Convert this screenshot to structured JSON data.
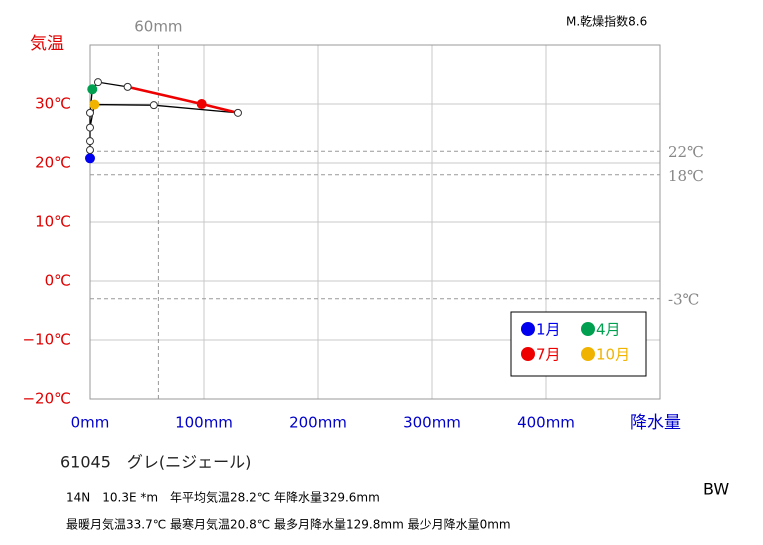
{
  "chart_data": {
    "type": "climograph",
    "aridity": "M.乾燥指数8.6",
    "y_label": "気温",
    "x_label": "降水量",
    "x": [
      0,
      0,
      0,
      2,
      7,
      33,
      98,
      129.8,
      56,
      3.8,
      0,
      0
    ],
    "values": [
      20.8,
      23.7,
      28.5,
      32.5,
      33.7,
      32.9,
      30.0,
      28.5,
      29.8,
      29.9,
      26.0,
      22.2
    ],
    "line_color": "#000000",
    "highlight_segment": {
      "from": 5,
      "to": 7,
      "color": "#ee0000"
    },
    "marked_months": [
      {
        "name": "1月",
        "index": 0,
        "color": "#0000ee"
      },
      {
        "name": "4月",
        "index": 3,
        "color": "#00a050"
      },
      {
        "name": "7月",
        "index": 6,
        "color": "#ee0000"
      },
      {
        "name": "10月",
        "index": 9,
        "color": "#f0b400"
      }
    ],
    "xlim": [
      0,
      500
    ],
    "ylim": [
      -20,
      40
    ],
    "xticks": [
      {
        "value": 0,
        "label": "0mm"
      },
      {
        "value": 100,
        "label": "100mm"
      },
      {
        "value": 200,
        "label": "200mm"
      },
      {
        "value": 300,
        "label": "300mm"
      },
      {
        "value": 400,
        "label": "400mm"
      }
    ],
    "yticks": [
      {
        "value": -20,
        "label": "−20℃"
      },
      {
        "value": -10,
        "label": "−10℃"
      },
      {
        "value": 0,
        "label": "0℃"
      },
      {
        "value": 10,
        "label": "10℃"
      },
      {
        "value": 20,
        "label": "20℃"
      },
      {
        "value": 30,
        "label": "30℃"
      }
    ],
    "x_reference": {
      "value": 60,
      "label": "60mm"
    },
    "y_references": [
      {
        "value": 22,
        "label": "22℃"
      },
      {
        "value": 18,
        "label": "18℃"
      },
      {
        "value": -3,
        "label": "-3℃"
      }
    ],
    "grid": true,
    "station": "61045　グレ(ニジェール)",
    "info_line1": "14N　10.3E *m　年平均気温28.2℃ 年降水量329.6mm",
    "info_line2": "最暖月気温33.7℃ 最寒月気温20.8℃ 最多月降水量129.8mm 最少月降水量0mm",
    "climate_class": "BW"
  }
}
